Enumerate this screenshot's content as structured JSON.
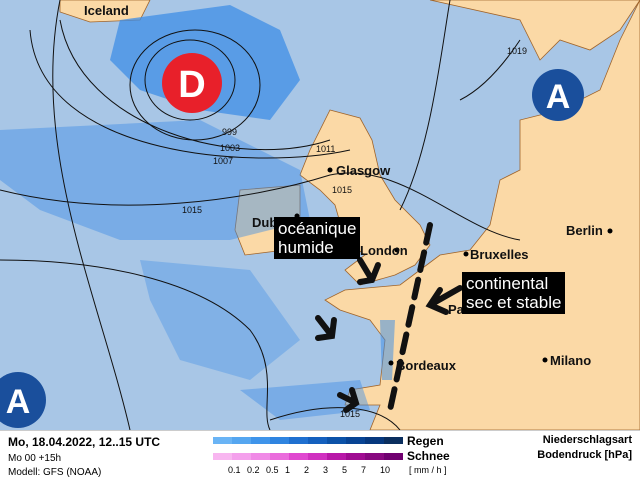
{
  "map": {
    "cities": [
      "Iceland",
      "Glasgow",
      "Dublin",
      "London",
      "Bruxelles",
      "Berlin",
      "Paris",
      "Bordeaux",
      "Milano"
    ],
    "isobars": [
      "999",
      "1003",
      "1007",
      "1011",
      "1015",
      "1015",
      "1019",
      "1015"
    ],
    "pressure_centers": [
      {
        "label": "D",
        "type": "low",
        "color": "#e8202a"
      },
      {
        "label": "A",
        "type": "high",
        "color": "#1a4f9c"
      },
      {
        "label": "A",
        "type": "high",
        "color": "#1a4f9c"
      }
    ],
    "callouts": [
      {
        "line1": "océanique",
        "line2": "humide"
      },
      {
        "line1": "continental",
        "line2": "sec et stable"
      }
    ],
    "colors": {
      "sea": "#a8c6e6",
      "land": "#fbd9a6",
      "rain": "#3f8ee6"
    }
  },
  "legend": {
    "date": "Mo, 18.04.2022, 12..15 UTC",
    "run": "Mo 00 +15h",
    "model": "Modell: GFS (NOAA)",
    "rain_label": "Regen",
    "snow_label": "Schnee",
    "unit": "[ mm / h ]",
    "scale": [
      "0.1",
      "0.2",
      "0.5",
      "1",
      "2",
      "3",
      "5",
      "7",
      "10"
    ],
    "title1": "Niederschlagsart",
    "title2": "Bodendruck [hPa]",
    "rain_colors": [
      "#6ab4f5",
      "#55a6f0",
      "#3f94ea",
      "#2f84e0",
      "#1f70d0",
      "#1560be",
      "#0c52a8",
      "#084494",
      "#06387e",
      "#0a2e5e"
    ],
    "snow_colors": [
      "#f8b6f0",
      "#f4a0ec",
      "#f08ae6",
      "#ea6cdc",
      "#e048d0",
      "#d030c0",
      "#b818a8",
      "#a00c92",
      "#880880",
      "#700070"
    ]
  }
}
